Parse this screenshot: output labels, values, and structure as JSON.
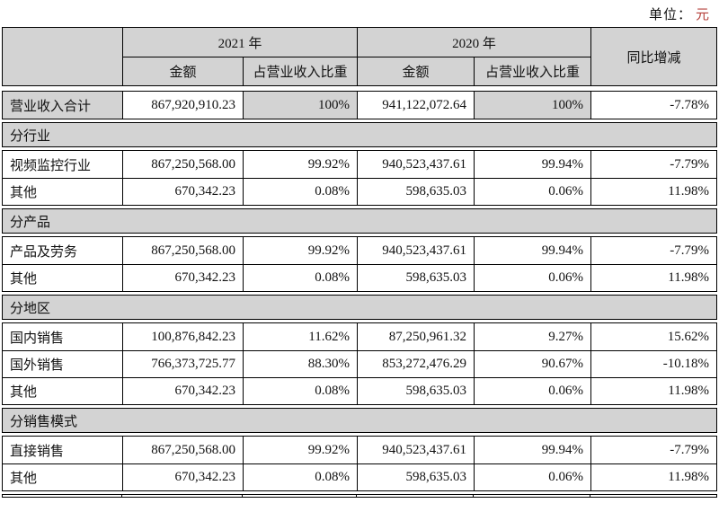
{
  "unit": {
    "prefix": "单位：",
    "currency": "元"
  },
  "colors": {
    "header_bg": "#d3d3d3",
    "section_bg": "#d3d3d3",
    "border": "#000000",
    "text": "#111111",
    "unit_currency_red": "#b5413c"
  },
  "table": {
    "header": {
      "year_2021": "2021 年",
      "year_2020": "2020 年",
      "amount": "金额",
      "ratio": "占营业收入比重",
      "yoy": "同比增减"
    },
    "rows": [
      {
        "type": "total",
        "id": "revenue-total",
        "label": "营业收入合计",
        "values": [
          "867,920,910.23",
          "100%",
          "941,122,072.64",
          "100%",
          "-7.78%"
        ]
      },
      {
        "type": "section",
        "id": "by-industry",
        "label": "分行业"
      },
      {
        "type": "group",
        "id": "industry-group",
        "rows": [
          {
            "id": "video-surveillance",
            "label": "视频监控行业",
            "values": [
              "867,250,568.00",
              "99.92%",
              "940,523,437.61",
              "99.94%",
              "-7.79%"
            ]
          },
          {
            "id": "industry-other",
            "label": "其他",
            "values": [
              "670,342.23",
              "0.08%",
              "598,635.03",
              "0.06%",
              "11.98%"
            ]
          }
        ]
      },
      {
        "type": "section",
        "id": "by-product",
        "label": "分产品"
      },
      {
        "type": "group",
        "id": "product-group",
        "rows": [
          {
            "id": "products-and-services",
            "label": "产品及劳务",
            "values": [
              "867,250,568.00",
              "99.92%",
              "940,523,437.61",
              "99.94%",
              "-7.79%"
            ]
          },
          {
            "id": "product-other",
            "label": "其他",
            "values": [
              "670,342.23",
              "0.08%",
              "598,635.03",
              "0.06%",
              "11.98%"
            ]
          }
        ]
      },
      {
        "type": "section",
        "id": "by-region",
        "label": "分地区"
      },
      {
        "type": "group",
        "id": "region-group",
        "rows": [
          {
            "id": "domestic-sales",
            "label": "国内销售",
            "values": [
              "100,876,842.23",
              "11.62%",
              "87,250,961.32",
              "9.27%",
              "15.62%"
            ]
          },
          {
            "id": "overseas-sales",
            "label": "国外销售",
            "values": [
              "766,373,725.77",
              "88.30%",
              "853,272,476.29",
              "90.67%",
              "-10.18%"
            ]
          },
          {
            "id": "region-other",
            "label": "其他",
            "values": [
              "670,342.23",
              "0.08%",
              "598,635.03",
              "0.06%",
              "11.98%"
            ]
          }
        ]
      },
      {
        "type": "section",
        "id": "by-sales-model",
        "label": "分销售模式"
      },
      {
        "type": "group",
        "id": "sales-model-group",
        "rows": [
          {
            "id": "direct-sales",
            "label": "直接销售",
            "values": [
              "867,250,568.00",
              "99.92%",
              "940,523,437.61",
              "99.94%",
              "-7.79%"
            ]
          },
          {
            "id": "sales-model-other",
            "label": "其他",
            "values": [
              "670,342.23",
              "0.08%",
              "598,635.03",
              "0.06%",
              "11.98%"
            ]
          }
        ]
      }
    ]
  }
}
